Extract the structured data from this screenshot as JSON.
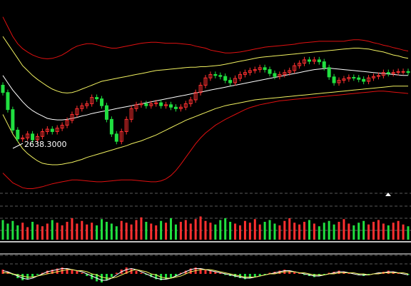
{
  "chart_data": [
    {
      "type": "candlestick",
      "panel": "price",
      "annotations": [
        {
          "text": "2638.3000",
          "x": 5,
          "y": 2638.3
        }
      ],
      "colors": {
        "up": "#ff3030",
        "down": "#20e040",
        "outer_band": "#e01010",
        "inner_band": "#f0f060",
        "mid_band": "#ffffff"
      },
      "series": [
        {
          "name": "",
          "style": "outer-upper",
          "values": [
            2900,
            2880,
            2860,
            2845,
            2835,
            2828,
            2822,
            2818,
            2815,
            2814,
            2815,
            2818,
            2822,
            2828,
            2835,
            2840,
            2843,
            2845,
            2845,
            2843,
            2840,
            2838,
            2836,
            2836,
            2838,
            2840,
            2842,
            2844,
            2846,
            2847,
            2848,
            2848,
            2847,
            2846,
            2846,
            2846,
            2845,
            2844,
            2843,
            2840,
            2838,
            2836,
            2832,
            2830,
            2828,
            2826,
            2826,
            2827,
            2828,
            2830,
            2832,
            2834,
            2836,
            2838,
            2839,
            2840,
            2841,
            2842,
            2843,
            2844,
            2846,
            2847,
            2848,
            2849,
            2850,
            2850,
            2850,
            2850,
            2850,
            2850,
            2852,
            2853,
            2853,
            2852,
            2850,
            2847,
            2845,
            2842,
            2840,
            2837,
            2835,
            2832,
            2830
          ]
        },
        {
          "name": "",
          "style": "inner-upper",
          "values": [
            2860,
            2845,
            2830,
            2815,
            2800,
            2790,
            2780,
            2772,
            2765,
            2758,
            2752,
            2748,
            2745,
            2744,
            2745,
            2748,
            2752,
            2756,
            2760,
            2764,
            2768,
            2770,
            2772,
            2774,
            2776,
            2778,
            2780,
            2782,
            2784,
            2786,
            2788,
            2790,
            2791,
            2792,
            2793,
            2794,
            2795,
            2796,
            2797,
            2797,
            2798,
            2798,
            2799,
            2800,
            2801,
            2803,
            2805,
            2807,
            2809,
            2811,
            2813,
            2815,
            2817,
            2818,
            2819,
            2820,
            2821,
            2822,
            2823,
            2824,
            2825,
            2826,
            2827,
            2828,
            2829,
            2830,
            2831,
            2832,
            2833,
            2834,
            2835,
            2836,
            2836,
            2835,
            2834,
            2832,
            2830,
            2828,
            2825,
            2822,
            2820,
            2817,
            2815
          ]
        },
        {
          "name": "",
          "style": "middle",
          "values": [
            2780,
            2765,
            2750,
            2738,
            2726,
            2716,
            2708,
            2702,
            2697,
            2692,
            2690,
            2689,
            2689,
            2690,
            2692,
            2694,
            2697,
            2699,
            2702,
            2704,
            2706,
            2708,
            2710,
            2712,
            2714,
            2716,
            2718,
            2720,
            2722,
            2724,
            2726,
            2728,
            2730,
            2732,
            2734,
            2736,
            2738,
            2740,
            2742,
            2744,
            2746,
            2748,
            2750,
            2752,
            2754,
            2756,
            2758,
            2760,
            2762,
            2764,
            2766,
            2768,
            2770,
            2772,
            2774,
            2776,
            2778,
            2780,
            2782,
            2784,
            2786,
            2788,
            2790,
            2792,
            2793,
            2794,
            2795,
            2794,
            2793,
            2792,
            2791,
            2790,
            2789,
            2788,
            2787,
            2786,
            2785,
            2784,
            2783,
            2782,
            2781,
            2780,
            2780
          ]
        },
        {
          "name": "",
          "style": "inner-lower",
          "values": [
            2700,
            2680,
            2660,
            2645,
            2630,
            2620,
            2612,
            2605,
            2600,
            2598,
            2597,
            2597,
            2598,
            2600,
            2602,
            2605,
            2608,
            2612,
            2615,
            2618,
            2621,
            2624,
            2627,
            2630,
            2633,
            2636,
            2640,
            2643,
            2646,
            2650,
            2654,
            2658,
            2663,
            2668,
            2673,
            2678,
            2683,
            2688,
            2692,
            2696,
            2700,
            2704,
            2708,
            2712,
            2715,
            2718,
            2720,
            2722,
            2724,
            2726,
            2728,
            2730,
            2731,
            2732,
            2733,
            2734,
            2735,
            2736,
            2737,
            2738,
            2739,
            2740,
            2741,
            2742,
            2743,
            2744,
            2745,
            2746,
            2747,
            2748,
            2749,
            2750,
            2751,
            2752,
            2753,
            2754,
            2755,
            2756,
            2757,
            2758,
            2758,
            2758,
            2758
          ]
        },
        {
          "name": "",
          "style": "outer-lower",
          "values": [
            2580,
            2570,
            2560,
            2555,
            2550,
            2548,
            2548,
            2550,
            2552,
            2555,
            2558,
            2560,
            2562,
            2564,
            2566,
            2566,
            2565,
            2564,
            2563,
            2562,
            2562,
            2563,
            2564,
            2565,
            2566,
            2566,
            2566,
            2565,
            2564,
            2563,
            2562,
            2562,
            2564,
            2568,
            2575,
            2585,
            2598,
            2612,
            2626,
            2640,
            2652,
            2662,
            2670,
            2678,
            2684,
            2690,
            2695,
            2700,
            2705,
            2710,
            2714,
            2717,
            2720,
            2722,
            2724,
            2726,
            2728,
            2729,
            2730,
            2731,
            2732,
            2733,
            2734,
            2735,
            2736,
            2737,
            2738,
            2739,
            2740,
            2741,
            2742,
            2743,
            2744,
            2745,
            2746,
            2747,
            2748,
            2748,
            2747,
            2746,
            2745,
            2744,
            2743
          ]
        }
      ],
      "candles": {
        "open": [
          2760,
          2745,
          2710,
          2668,
          2650,
          2652,
          2660,
          2648,
          2655,
          2665,
          2670,
          2665,
          2672,
          2678,
          2688,
          2700,
          2712,
          2718,
          2722,
          2735,
          2732,
          2718,
          2690,
          2660,
          2645,
          2665,
          2690,
          2712,
          2720,
          2722,
          2718,
          2722,
          2724,
          2718,
          2720,
          2715,
          2712,
          2715,
          2722,
          2730,
          2745,
          2760,
          2775,
          2782,
          2780,
          2778,
          2770,
          2765,
          2774,
          2782,
          2786,
          2790,
          2792,
          2796,
          2792,
          2784,
          2778,
          2782,
          2786,
          2790,
          2800,
          2805,
          2812,
          2809,
          2812,
          2808,
          2796,
          2777,
          2765,
          2770,
          2773,
          2776,
          2775,
          2772,
          2768,
          2775,
          2778,
          2780,
          2786,
          2784,
          2786,
          2788,
          2788
        ],
        "close": [
          2745,
          2710,
          2668,
          2650,
          2652,
          2660,
          2648,
          2655,
          2665,
          2670,
          2665,
          2672,
          2678,
          2688,
          2700,
          2712,
          2718,
          2722,
          2735,
          2732,
          2718,
          2690,
          2660,
          2645,
          2665,
          2690,
          2712,
          2720,
          2722,
          2718,
          2722,
          2724,
          2718,
          2720,
          2715,
          2712,
          2715,
          2722,
          2730,
          2745,
          2760,
          2775,
          2782,
          2780,
          2778,
          2770,
          2765,
          2774,
          2782,
          2786,
          2790,
          2792,
          2796,
          2792,
          2784,
          2778,
          2782,
          2786,
          2790,
          2800,
          2805,
          2812,
          2809,
          2812,
          2808,
          2796,
          2777,
          2765,
          2770,
          2773,
          2776,
          2775,
          2772,
          2768,
          2775,
          2778,
          2780,
          2786,
          2784,
          2786,
          2788,
          2788,
          2786
        ]
      }
    },
    {
      "type": "bar",
      "panel": "volume",
      "values": [
        22,
        18,
        21,
        16,
        19,
        14,
        20,
        17,
        15,
        18,
        22,
        19,
        16,
        20,
        24,
        18,
        21,
        17,
        19,
        16,
        23,
        20,
        18,
        15,
        21,
        19,
        17,
        22,
        25,
        20,
        18,
        16,
        21,
        19,
        24,
        17,
        20,
        22,
        18,
        23,
        26,
        21,
        19,
        17,
        22,
        24,
        20,
        18,
        16,
        21,
        19,
        23,
        17,
        20,
        22,
        18,
        16,
        21,
        24,
        19,
        17,
        20,
        22,
        18,
        15,
        19,
        21,
        17,
        20,
        23,
        18,
        16,
        19,
        21,
        17,
        20,
        22,
        18,
        16,
        19,
        21,
        17,
        15
      ]
    },
    {
      "type": "bar",
      "panel": "macd",
      "values": [
        0.4,
        0.2,
        -0.1,
        -0.4,
        -0.6,
        -0.5,
        -0.3,
        -0.1,
        0.1,
        0.3,
        0.4,
        0.5,
        0.6,
        0.5,
        0.4,
        0.3,
        0.1,
        -0.2,
        -0.5,
        -0.7,
        -0.8,
        -0.6,
        -0.3,
        0.1,
        0.4,
        0.6,
        0.5,
        0.3,
        0.1,
        -0.1,
        -0.3,
        -0.5,
        -0.6,
        -0.5,
        -0.4,
        -0.2,
        0.1,
        0.3,
        0.5,
        0.6,
        0.5,
        0.4,
        0.3,
        0.2,
        0.1,
        -0.1,
        -0.2,
        -0.3,
        -0.4,
        -0.5,
        -0.4,
        -0.3,
        -0.2,
        -0.1,
        0.1,
        0.2,
        0.3,
        0.4,
        0.3,
        0.2,
        0.1,
        -0.1,
        -0.2,
        -0.3,
        -0.2,
        -0.1,
        0.1,
        0.2,
        0.3,
        0.2,
        0.1,
        0.0,
        -0.1,
        -0.2,
        -0.1,
        0.0,
        0.1,
        0.2,
        0.3,
        0.2,
        0.1,
        0.0,
        -0.1
      ],
      "series": [
        {
          "name": "",
          "style": "white",
          "values": [
            0.3,
            0.2,
            0.0,
            -0.2,
            -0.4,
            -0.5,
            -0.4,
            -0.2,
            0.0,
            0.2,
            0.3,
            0.4,
            0.5,
            0.5,
            0.4,
            0.3,
            0.2,
            0.0,
            -0.2,
            -0.4,
            -0.6,
            -0.6,
            -0.4,
            -0.1,
            0.2,
            0.4,
            0.5,
            0.4,
            0.2,
            0.0,
            -0.2,
            -0.4,
            -0.5,
            -0.5,
            -0.4,
            -0.2,
            0.0,
            0.2,
            0.4,
            0.5,
            0.5,
            0.4,
            0.3,
            0.2,
            0.1,
            0.0,
            -0.1,
            -0.2,
            -0.3,
            -0.4,
            -0.4,
            -0.3,
            -0.2,
            -0.1,
            0.0,
            0.1,
            0.2,
            0.3,
            0.3,
            0.2,
            0.1,
            0.0,
            -0.1,
            -0.2,
            -0.2,
            -0.1,
            0.0,
            0.1,
            0.2,
            0.2,
            0.1,
            0.0,
            -0.1,
            -0.1,
            -0.1,
            0.0,
            0.1,
            0.1,
            0.2,
            0.2,
            0.1,
            0.0,
            -0.1
          ]
        },
        {
          "name": "",
          "style": "yellow",
          "values": [
            0.1,
            0.1,
            0.0,
            -0.1,
            -0.2,
            -0.3,
            -0.3,
            -0.2,
            -0.1,
            0.0,
            0.1,
            0.2,
            0.3,
            0.4,
            0.4,
            0.3,
            0.3,
            0.2,
            0.0,
            -0.1,
            -0.3,
            -0.4,
            -0.4,
            -0.3,
            -0.1,
            0.1,
            0.3,
            0.4,
            0.3,
            0.2,
            0.0,
            -0.1,
            -0.3,
            -0.4,
            -0.4,
            -0.3,
            -0.2,
            0.0,
            0.2,
            0.3,
            0.4,
            0.4,
            0.4,
            0.3,
            0.2,
            0.1,
            0.0,
            -0.1,
            -0.2,
            -0.3,
            -0.3,
            -0.3,
            -0.2,
            -0.1,
            0.0,
            0.0,
            0.1,
            0.2,
            0.2,
            0.2,
            0.1,
            0.1,
            0.0,
            -0.1,
            -0.1,
            -0.1,
            0.0,
            0.0,
            0.1,
            0.1,
            0.1,
            0.1,
            0.0,
            0.0,
            -0.1,
            0.0,
            0.0,
            0.1,
            0.1,
            0.1,
            0.1,
            0.1,
            0.0
          ]
        }
      ]
    }
  ]
}
